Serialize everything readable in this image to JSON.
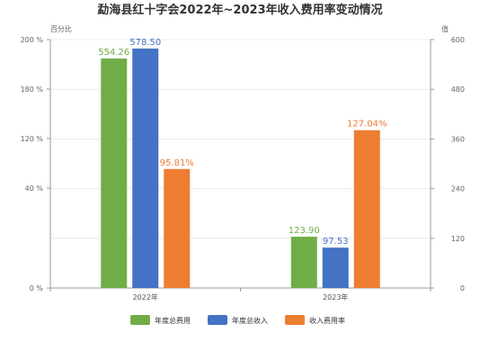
{
  "chart_data": {
    "type": "bar",
    "title": "勐海县红十字会2022年~2023年收入费用率变动情况",
    "categories": [
      "2022年",
      "2023年"
    ],
    "left_axis": {
      "label": "百分比",
      "ticks": [
        "0 %",
        "40 %",
        "120 %",
        "180 %",
        "200 %"
      ],
      "ylim": [
        0,
        200
      ]
    },
    "right_axis": {
      "label": "值",
      "ticks": [
        "0",
        "120",
        "240",
        "360",
        "480",
        "600"
      ],
      "ylim": [
        0,
        600
      ]
    },
    "series": [
      {
        "name": "年度总费用",
        "axis": "right",
        "color": "#70ad47",
        "values": [
          554.26,
          123.9
        ],
        "labels": [
          "554.26",
          "123.90"
        ]
      },
      {
        "name": "年度总收入",
        "axis": "right",
        "color": "#4472c4",
        "values": [
          578.5,
          97.53
        ],
        "labels": [
          "578.50",
          "97.53"
        ]
      },
      {
        "name": "收入费用率",
        "axis": "left",
        "color": "#ed7d31",
        "values": [
          95.81,
          127.04
        ],
        "labels": [
          "95.81%",
          "127.04%"
        ]
      }
    ],
    "grid": true,
    "legend_position": "bottom"
  }
}
